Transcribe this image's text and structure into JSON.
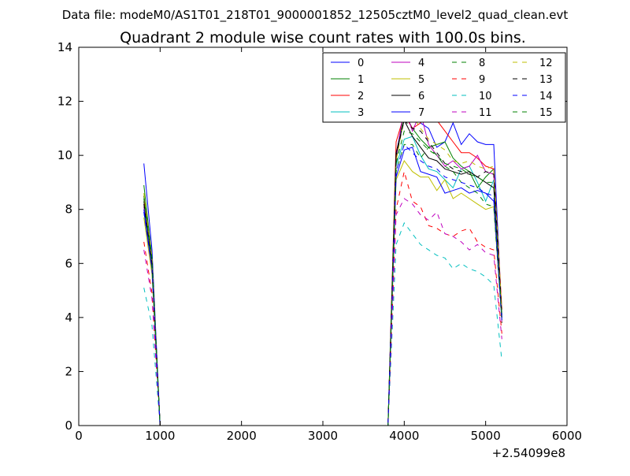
{
  "chart_data": {
    "type": "line",
    "suptitle": "Data file: modeM0/AS1T01_218T01_9000001852_12505cztM0_level2_quad_clean.evt",
    "title": "Quadrant 2 module wise count rates with 100.0s bins.",
    "xlabel": "",
    "ylabel": "",
    "x_offset_label": "+2.54099e8",
    "xlim": [
      0,
      6000
    ],
    "ylim": [
      0,
      14
    ],
    "xticks": [
      0,
      1000,
      2000,
      3000,
      4000,
      5000,
      6000
    ],
    "yticks": [
      0,
      2,
      4,
      6,
      8,
      10,
      12,
      14
    ],
    "legend_position": "top-right",
    "legend_columns": 4,
    "x": [
      800,
      900,
      1000,
      1100,
      1200,
      1300,
      1400,
      1500,
      1600,
      1700,
      1800,
      1900,
      2000,
      2100,
      2200,
      2300,
      2400,
      2500,
      2600,
      2700,
      2800,
      2900,
      3000,
      3100,
      3200,
      3300,
      3400,
      3500,
      3600,
      3700,
      3800,
      3900,
      4000,
      4100,
      4200,
      4300,
      4400,
      4500,
      4600,
      4700,
      4800,
      4900,
      5000,
      5100,
      5200
    ],
    "series": [
      {
        "name": "0",
        "color": "#0000ff",
        "dash": "solid",
        "values": [
          9.7,
          6.5,
          0,
          0,
          0,
          0,
          0,
          0,
          0,
          0,
          0,
          0,
          0,
          0,
          0,
          0,
          0,
          0,
          0,
          0,
          0,
          0,
          0,
          0,
          0,
          0,
          0,
          0,
          0,
          0,
          0,
          10.0,
          11.7,
          11.8,
          11.2,
          11.0,
          10.3,
          10.5,
          11.2,
          10.4,
          10.8,
          10.5,
          10.4,
          10.4,
          4.0
        ]
      },
      {
        "name": "1",
        "color": "#008000",
        "dash": "solid",
        "values": [
          8.9,
          6.2,
          0,
          0,
          0,
          0,
          0,
          0,
          0,
          0,
          0,
          0,
          0,
          0,
          0,
          0,
          0,
          0,
          0,
          0,
          0,
          0,
          0,
          0,
          0,
          0,
          0,
          0,
          0,
          0,
          0,
          9.8,
          11.6,
          11.0,
          10.6,
          10.3,
          10.4,
          10.5,
          9.9,
          9.6,
          9.4,
          8.8,
          9.2,
          9.5,
          4.1
        ]
      },
      {
        "name": "2",
        "color": "#ff0000",
        "dash": "solid",
        "values": [
          8.5,
          6.0,
          0,
          0,
          0,
          0,
          0,
          0,
          0,
          0,
          0,
          0,
          0,
          0,
          0,
          0,
          0,
          0,
          0,
          0,
          0,
          0,
          0,
          0,
          0,
          0,
          0,
          0,
          0,
          0,
          0,
          10.5,
          11.5,
          11.0,
          11.2,
          11.7,
          11.3,
          10.9,
          10.5,
          10.1,
          10.1,
          9.9,
          9.6,
          9.5,
          4.3
        ]
      },
      {
        "name": "3",
        "color": "#00bfbf",
        "dash": "solid",
        "values": [
          7.9,
          5.7,
          0,
          0,
          0,
          0,
          0,
          0,
          0,
          0,
          0,
          0,
          0,
          0,
          0,
          0,
          0,
          0,
          0,
          0,
          0,
          0,
          0,
          0,
          0,
          0,
          0,
          0,
          0,
          0,
          0,
          9.6,
          10.6,
          10.7,
          10.0,
          9.5,
          9.4,
          9.1,
          8.8,
          9.5,
          9.6,
          9.0,
          8.3,
          9.1,
          3.9
        ]
      },
      {
        "name": "4",
        "color": "#bf00bf",
        "dash": "solid",
        "values": [
          8.1,
          5.9,
          0,
          0,
          0,
          0,
          0,
          0,
          0,
          0,
          0,
          0,
          0,
          0,
          0,
          0,
          0,
          0,
          0,
          0,
          0,
          0,
          0,
          0,
          0,
          0,
          0,
          0,
          0,
          0,
          0,
          9.9,
          11.8,
          10.9,
          11.6,
          10.4,
          10.0,
          9.6,
          9.8,
          9.5,
          9.6,
          10.0,
          9.4,
          9.3,
          3.8
        ]
      },
      {
        "name": "5",
        "color": "#bfbf00",
        "dash": "solid",
        "values": [
          7.7,
          5.6,
          0,
          0,
          0,
          0,
          0,
          0,
          0,
          0,
          0,
          0,
          0,
          0,
          0,
          0,
          0,
          0,
          0,
          0,
          0,
          0,
          0,
          0,
          0,
          0,
          0,
          0,
          0,
          0,
          0,
          9.1,
          9.8,
          9.4,
          9.2,
          9.2,
          8.7,
          9.1,
          8.4,
          8.6,
          8.4,
          8.2,
          8.0,
          8.1,
          3.9
        ]
      },
      {
        "name": "6",
        "color": "#000000",
        "dash": "solid",
        "values": [
          8.3,
          6.1,
          0,
          0,
          0,
          0,
          0,
          0,
          0,
          0,
          0,
          0,
          0,
          0,
          0,
          0,
          0,
          0,
          0,
          0,
          0,
          0,
          0,
          0,
          0,
          0,
          0,
          0,
          0,
          0,
          0,
          10.1,
          11.3,
          10.7,
          10.3,
          9.9,
          9.8,
          9.5,
          9.4,
          9.3,
          9.4,
          9.2,
          9.0,
          8.8,
          4.0
        ]
      },
      {
        "name": "7",
        "color": "#0000ff",
        "dash": "solid",
        "values": [
          8.0,
          5.8,
          0,
          0,
          0,
          0,
          0,
          0,
          0,
          0,
          0,
          0,
          0,
          0,
          0,
          0,
          0,
          0,
          0,
          0,
          0,
          0,
          0,
          0,
          0,
          0,
          0,
          0,
          0,
          0,
          0,
          9.2,
          10.2,
          10.3,
          9.4,
          9.3,
          9.2,
          8.6,
          8.7,
          8.8,
          8.6,
          8.7,
          8.6,
          8.3,
          3.9
        ]
      },
      {
        "name": "8",
        "color": "#008000",
        "dash": "dashed",
        "values": [
          8.5,
          6.1,
          0,
          0,
          0,
          0,
          0,
          0,
          0,
          0,
          0,
          0,
          0,
          0,
          0,
          0,
          0,
          0,
          0,
          0,
          0,
          0,
          0,
          0,
          0,
          0,
          0,
          0,
          0,
          0,
          0,
          9.4,
          10.4,
          10.4,
          9.9,
          10.3,
          10.0,
          9.6,
          9.4,
          9.0,
          8.8,
          8.6,
          8.2,
          8.1,
          3.8
        ]
      },
      {
        "name": "9",
        "color": "#ff0000",
        "dash": "dashed",
        "values": [
          6.8,
          4.9,
          0,
          0,
          0,
          0,
          0,
          0,
          0,
          0,
          0,
          0,
          0,
          0,
          0,
          0,
          0,
          0,
          0,
          0,
          0,
          0,
          0,
          0,
          0,
          0,
          0,
          0,
          0,
          0,
          0,
          8.0,
          9.4,
          8.3,
          8.1,
          7.4,
          7.3,
          7.1,
          7.0,
          7.2,
          7.3,
          6.8,
          6.6,
          6.5,
          3.4
        ]
      },
      {
        "name": "10",
        "color": "#00bfbf",
        "dash": "dashed",
        "values": [
          5.1,
          3.7,
          0,
          0,
          0,
          0,
          0,
          0,
          0,
          0,
          0,
          0,
          0,
          0,
          0,
          0,
          0,
          0,
          0,
          0,
          0,
          0,
          0,
          0,
          0,
          0,
          0,
          0,
          0,
          0,
          0,
          6.7,
          7.5,
          7.1,
          6.7,
          6.5,
          6.3,
          6.2,
          5.8,
          6.0,
          5.8,
          5.7,
          5.5,
          5.2,
          2.4
        ]
      },
      {
        "name": "11",
        "color": "#bf00bf",
        "dash": "dashed",
        "values": [
          6.5,
          4.7,
          0,
          0,
          0,
          0,
          0,
          0,
          0,
          0,
          0,
          0,
          0,
          0,
          0,
          0,
          0,
          0,
          0,
          0,
          0,
          0,
          0,
          0,
          0,
          0,
          0,
          0,
          0,
          0,
          0,
          7.8,
          8.4,
          8.2,
          7.8,
          7.6,
          7.9,
          7.1,
          7.0,
          6.8,
          6.5,
          6.7,
          6.4,
          6.3,
          3.2
        ]
      },
      {
        "name": "12",
        "color": "#bfbf00",
        "dash": "dashed",
        "values": [
          8.6,
          6.2,
          0,
          0,
          0,
          0,
          0,
          0,
          0,
          0,
          0,
          0,
          0,
          0,
          0,
          0,
          0,
          0,
          0,
          0,
          0,
          0,
          0,
          0,
          0,
          0,
          0,
          0,
          0,
          0,
          0,
          9.8,
          11.4,
          11.5,
          11.0,
          10.6,
          10.4,
          10.2,
          9.8,
          9.7,
          9.8,
          9.6,
          9.5,
          9.6,
          4.2
        ]
      },
      {
        "name": "13",
        "color": "#000000",
        "dash": "dashed",
        "values": [
          8.2,
          6.0,
          0,
          0,
          0,
          0,
          0,
          0,
          0,
          0,
          0,
          0,
          0,
          0,
          0,
          0,
          0,
          0,
          0,
          0,
          0,
          0,
          0,
          0,
          0,
          0,
          0,
          0,
          0,
          0,
          0,
          10.0,
          11.3,
          11.0,
          10.9,
          10.5,
          10.1,
          9.7,
          9.5,
          9.4,
          9.3,
          9.2,
          9.4,
          9.3,
          4.1
        ]
      },
      {
        "name": "14",
        "color": "#0000ff",
        "dash": "dashed",
        "values": [
          7.9,
          5.8,
          0,
          0,
          0,
          0,
          0,
          0,
          0,
          0,
          0,
          0,
          0,
          0,
          0,
          0,
          0,
          0,
          0,
          0,
          0,
          0,
          0,
          0,
          0,
          0,
          0,
          0,
          0,
          0,
          0,
          9.4,
          10.4,
          10.1,
          9.8,
          9.6,
          9.5,
          9.2,
          9.1,
          9.0,
          8.9,
          8.8,
          8.6,
          8.5,
          3.9
        ]
      },
      {
        "name": "15",
        "color": "#008000",
        "dash": "dashed",
        "values": [
          8.4,
          6.0,
          0,
          0,
          0,
          0,
          0,
          0,
          0,
          0,
          0,
          0,
          0,
          0,
          0,
          0,
          0,
          0,
          0,
          0,
          0,
          0,
          0,
          0,
          0,
          0,
          0,
          0,
          0,
          0,
          0,
          9.7,
          10.9,
          10.8,
          10.5,
          10.2,
          10.0,
          9.7,
          9.6,
          9.5,
          9.3,
          9.2,
          9.0,
          9.0,
          4.0
        ]
      }
    ]
  }
}
